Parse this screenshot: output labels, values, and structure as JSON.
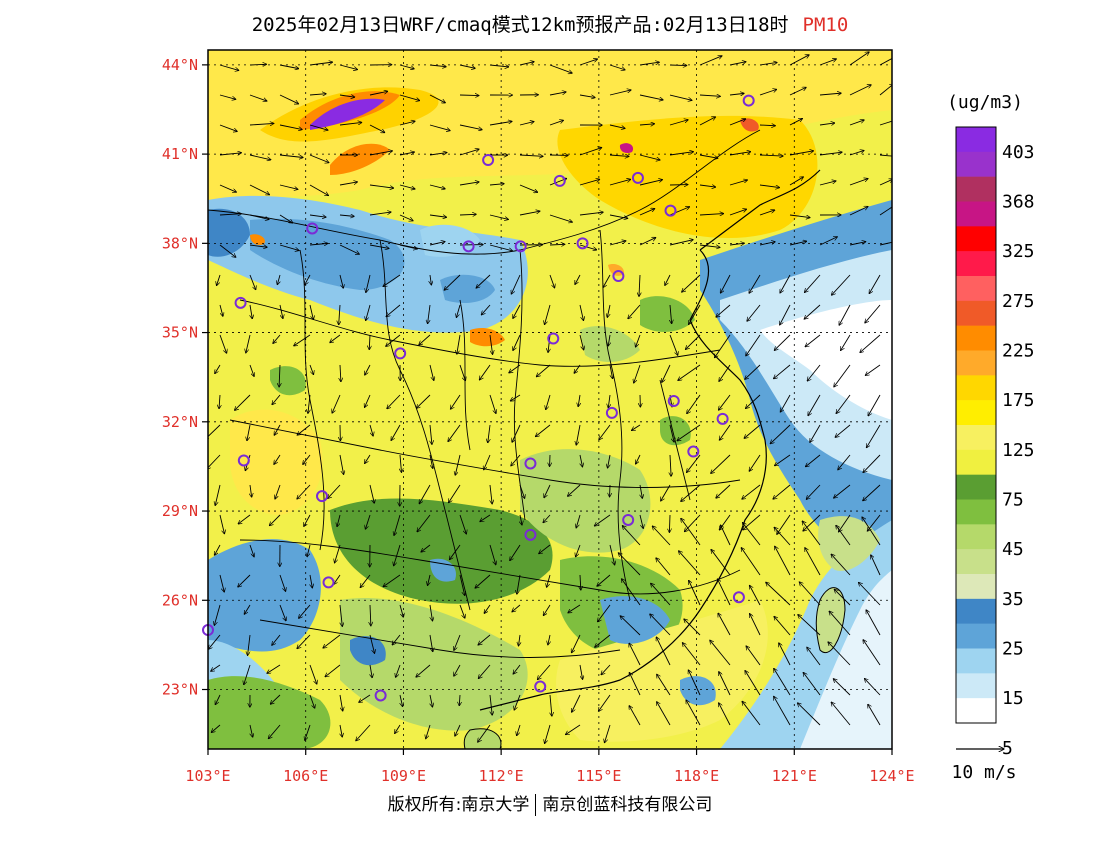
{
  "header": {
    "title": "2025年02月13日WRF/cmaq模式12km预报产品:02月13日18时",
    "pollutant": "PM10"
  },
  "axes": {
    "lat_labels": [
      "44°N",
      "41°N",
      "38°N",
      "35°N",
      "32°N",
      "29°N",
      "26°N",
      "23°N"
    ],
    "lon_labels": [
      "103°E",
      "106°E",
      "109°E",
      "112°E",
      "115°E",
      "118°E",
      "121°E",
      "124°E"
    ],
    "lat_values": [
      44,
      41,
      38,
      35,
      32,
      29,
      26,
      23
    ],
    "lon_values": [
      103,
      106,
      109,
      112,
      115,
      118,
      121,
      124
    ],
    "lat_range": [
      21,
      44.5
    ],
    "lon_range": [
      103,
      124
    ]
  },
  "colorbar": {
    "unit": "(ug/m3)",
    "labels": [
      "403",
      "368",
      "325",
      "275",
      "225",
      "175",
      "125",
      "75",
      "45",
      "35",
      "25",
      "15",
      "5"
    ],
    "colors": [
      "#8a2be2",
      "#9932cc",
      "#b03060",
      "#c71585",
      "#ff0000",
      "#ff1a4a",
      "#ff6060",
      "#f05a28",
      "#ff8c00",
      "#ffaa2a",
      "#ffd700",
      "#ffee00",
      "#f7f060",
      "#f0f040",
      "#5a9e32",
      "#7fbf3f",
      "#b5d96a",
      "#c8e08a",
      "#dde8b8",
      "#3f86c6",
      "#5ea4d8",
      "#9ed4f0",
      "#cce9f7",
      "#ffffff"
    ]
  },
  "wind_legend": {
    "label": "10 m/s"
  },
  "cities": [
    {
      "lon": 116.2,
      "lat": 40.2
    },
    {
      "lon": 117.2,
      "lat": 39.1
    },
    {
      "lon": 113.8,
      "lat": 40.1
    },
    {
      "lon": 119.6,
      "lat": 42.8
    },
    {
      "lon": 111.6,
      "lat": 40.8
    },
    {
      "lon": 112.6,
      "lat": 37.9
    },
    {
      "lon": 114.5,
      "lat": 38.0
    },
    {
      "lon": 106.2,
      "lat": 38.5
    },
    {
      "lon": 104.0,
      "lat": 36.0
    },
    {
      "lon": 108.9,
      "lat": 34.3
    },
    {
      "lon": 113.6,
      "lat": 34.8
    },
    {
      "lon": 115.6,
      "lat": 36.9
    },
    {
      "lon": 117.3,
      "lat": 32.7
    },
    {
      "lon": 115.4,
      "lat": 32.3
    },
    {
      "lon": 118.8,
      "lat": 32.1
    },
    {
      "lon": 112.9,
      "lat": 30.6
    },
    {
      "lon": 117.9,
      "lat": 31.0
    },
    {
      "lon": 104.1,
      "lat": 30.7
    },
    {
      "lon": 106.5,
      "lat": 29.5
    },
    {
      "lon": 115.9,
      "lat": 28.7
    },
    {
      "lon": 112.9,
      "lat": 28.2
    },
    {
      "lon": 106.7,
      "lat": 26.6
    },
    {
      "lon": 103.0,
      "lat": 25.0
    },
    {
      "lon": 108.3,
      "lat": 22.8
    },
    {
      "lon": 113.2,
      "lat": 23.1
    },
    {
      "lon": 119.3,
      "lat": 26.1
    },
    {
      "lon": 111.0,
      "lat": 37.9
    }
  ],
  "footer": {
    "copyright_a": "版权所有:南京大学",
    "copyright_b": "南京创蓝科技有限公司"
  }
}
